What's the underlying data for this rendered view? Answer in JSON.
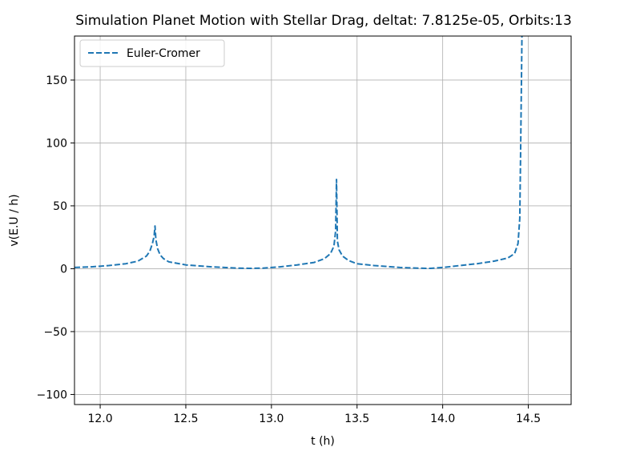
{
  "chart_data": {
    "type": "line",
    "title": "Simulation Planet Motion with Stellar Drag, deltat: 7.8125e-05, Orbits:13",
    "xlabel": "t (h)",
    "ylabel": "v(E.U / h)",
    "xlim": [
      11.85,
      14.75
    ],
    "ylim": [
      -108,
      185
    ],
    "xticks": [
      12.0,
      12.5,
      13.0,
      13.5,
      14.0,
      14.5
    ],
    "xtick_labels": [
      "12.0",
      "12.5",
      "13.0",
      "13.5",
      "14.0",
      "14.5"
    ],
    "yticks": [
      -100,
      -50,
      0,
      50,
      100,
      150
    ],
    "ytick_labels": [
      "−100",
      "−50",
      "0",
      "50",
      "100",
      "150"
    ],
    "grid": true,
    "legend_position": "upper left",
    "series": [
      {
        "name": "Euler-Cromer",
        "color": "#1f77b4",
        "linestyle": "dashed",
        "x": [
          11.85,
          11.95,
          12.05,
          12.15,
          12.22,
          12.27,
          12.29,
          12.305,
          12.315,
          12.32,
          12.325,
          12.335,
          12.35,
          12.37,
          12.4,
          12.5,
          12.65,
          12.8,
          12.87,
          12.95,
          13.05,
          13.15,
          13.25,
          13.31,
          13.345,
          13.365,
          13.375,
          13.38,
          13.385,
          13.395,
          13.415,
          13.45,
          13.5,
          13.6,
          13.75,
          13.9,
          13.93,
          14.0,
          14.1,
          14.2,
          14.3,
          14.38,
          14.42,
          14.44,
          14.45,
          14.455,
          14.46,
          14.463
        ],
        "y": [
          1,
          1.5,
          2.5,
          4,
          6,
          10,
          14,
          20,
          26,
          34,
          23,
          16,
          11,
          8,
          5.5,
          3,
          1.5,
          0.5,
          0.3,
          0.5,
          1.5,
          3,
          5,
          8,
          12,
          18,
          30,
          71,
          22,
          15,
          10,
          6.5,
          4,
          2.5,
          1,
          0.3,
          0.3,
          1,
          2.5,
          4,
          6,
          8.5,
          12,
          20,
          40,
          90,
          150,
          185
        ]
      }
    ]
  }
}
